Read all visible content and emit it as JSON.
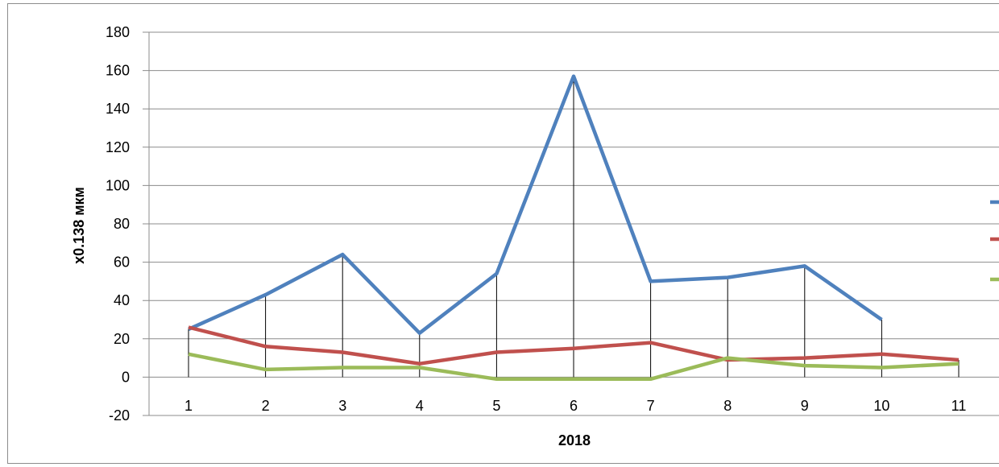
{
  "chart_data": {
    "type": "line",
    "title": "",
    "xlabel": "2018",
    "ylabel": "x0.138 мкм",
    "ylim": [
      -20,
      180
    ],
    "yticks": [
      -20,
      0,
      20,
      40,
      60,
      80,
      100,
      120,
      140,
      160,
      180
    ],
    "grid": true,
    "legend": "right (cut off, names not visible)",
    "categories": [
      "1",
      "2",
      "3",
      "4",
      "5",
      "6",
      "7",
      "8",
      "9",
      "10",
      "11"
    ],
    "series": [
      {
        "color": "#4f81bd",
        "values": [
          25,
          43,
          64,
          23,
          54,
          157,
          50,
          52,
          58,
          30,
          null
        ]
      },
      {
        "color": "#c0504d",
        "values": [
          26,
          16,
          13,
          7,
          13,
          15,
          18,
          9,
          10,
          12,
          9
        ]
      },
      {
        "color": "#9bbb59",
        "values": [
          12,
          4,
          5,
          5,
          -1,
          -1,
          -1,
          10,
          6,
          5,
          7
        ]
      }
    ],
    "drop_lines": [
      25,
      43,
      64,
      23,
      54,
      157,
      50,
      52,
      58,
      30,
      9
    ]
  }
}
